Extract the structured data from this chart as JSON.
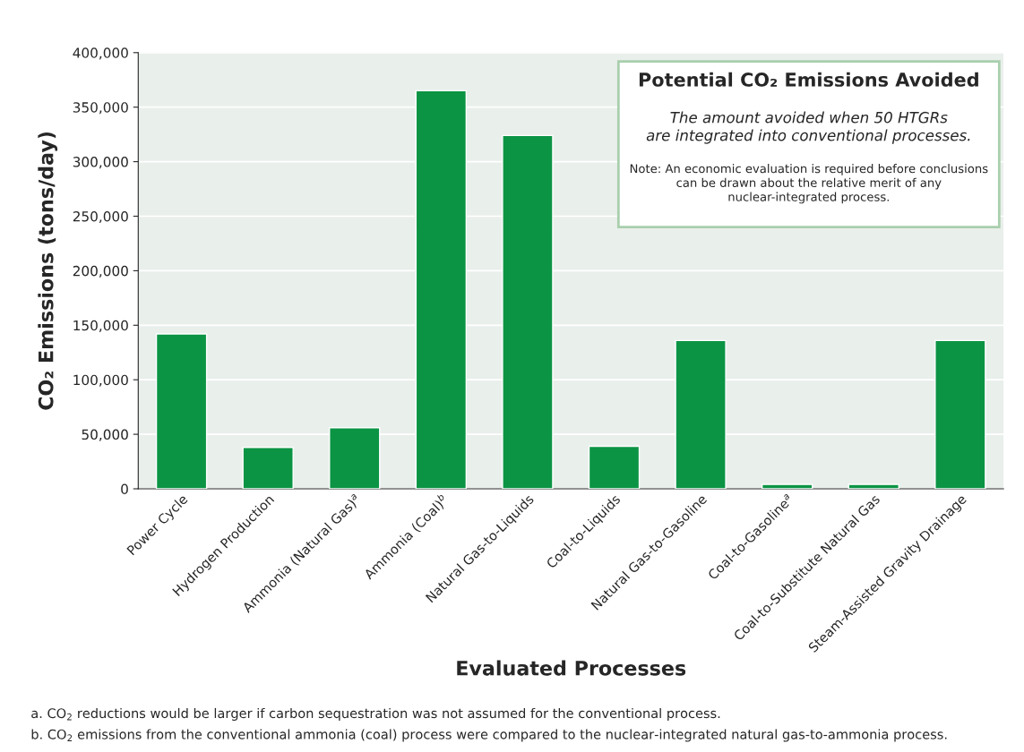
{
  "chart_data": {
    "type": "bar",
    "title": "Potential CO₂ Emissions Avoided",
    "subtitle": "The amount avoided when 50 HTGRs\nare integrated into conventional processes.",
    "xlabel": "Evaluated Processes",
    "ylabel": "CO₂ Emissions (tons/day)",
    "categories": [
      "Power Cycle",
      "Hydrogen Production",
      "Ammonia (Natural Gas)$^{a}$",
      "Ammonia (Coal)$^{b}$",
      "Natural Gas-to-Liquids",
      "Coal-to-Liquids",
      "Natural Gas-to-Gasoline",
      "Coal-to-Gasoline$^{a}$",
      "Coal-to-Substitute Natural Gas",
      "Steam-Assisted Gravity Drainage"
    ],
    "values": [
      142000,
      38000,
      56000,
      365000,
      324000,
      39000,
      136000,
      4000,
      4000,
      136000
    ],
    "color": "#0b9444",
    "ylim": [
      0,
      400000
    ],
    "yticks": [
      {
        "value": 0,
        "label": "0"
      },
      {
        "value": 50000,
        "label": "50,000"
      },
      {
        "value": 100000,
        "label": "100,000"
      },
      {
        "value": 150000,
        "label": "150,000"
      },
      {
        "value": 200000,
        "label": "200,000"
      },
      {
        "value": 250000,
        "label": "250,000"
      },
      {
        "value": 300000,
        "label": "300,000"
      },
      {
        "value": 350000,
        "label": "350,000"
      },
      {
        "value": 400000,
        "label": "400,000"
      }
    ],
    "grid": "y",
    "annotations": [
      "Note: An economic evaluation is required before conclusions\ncan be drawn about the relative merit of any\nnuclear-integrated process.",
      "a. CO$_{2}$ reductions would be larger if carbon sequestration was not assumed for the conventional process.",
      "b. CO$_{2}$ emissions from the conventional ammonia (coal) process were compared to the nuclear-integrated natural gas-to-ammonia process."
    ]
  }
}
